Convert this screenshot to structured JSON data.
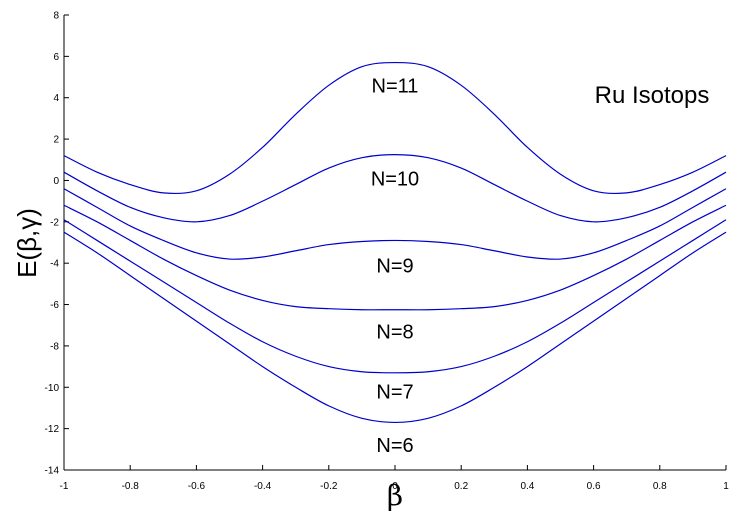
{
  "chart_data": {
    "type": "line",
    "xlabel": "β",
    "ylabel": "E(β,γ)",
    "annotation": "Ru Isotops",
    "xlim": [
      -1,
      1
    ],
    "ylim": [
      -14,
      8
    ],
    "xticks": [
      "-1",
      "-0.8",
      "-0.6",
      "-0.4",
      "-0.2",
      "0",
      "0.2",
      "0.4",
      "0.6",
      "0.8",
      "1"
    ],
    "yticks": [
      "-14",
      "-12",
      "-10",
      "-8",
      "-6",
      "-4",
      "-2",
      "0",
      "2",
      "4",
      "6",
      "8"
    ],
    "x": [
      -1,
      -0.9,
      -0.8,
      -0.7,
      -0.6,
      -0.5,
      -0.4,
      -0.3,
      -0.2,
      -0.1,
      0,
      0.1,
      0.2,
      0.3,
      0.4,
      0.5,
      0.6,
      0.7,
      0.8,
      0.9,
      1
    ],
    "series": [
      {
        "label": "N=11",
        "label_x": 0,
        "label_y": 4.6,
        "color": "#0000cc",
        "values": [
          1.2,
          0.4,
          -0.2,
          -0.6,
          -0.5,
          0.3,
          1.6,
          3.2,
          4.6,
          5.5,
          5.7,
          5.5,
          4.6,
          3.2,
          1.6,
          0.3,
          -0.5,
          -0.6,
          -0.2,
          0.4,
          1.2
        ]
      },
      {
        "label": "N=10",
        "label_x": 0,
        "label_y": 0.1,
        "color": "#0000cc",
        "values": [
          0.4,
          -0.5,
          -1.3,
          -1.8,
          -2.0,
          -1.7,
          -1.0,
          -0.2,
          0.6,
          1.1,
          1.25,
          1.1,
          0.6,
          -0.2,
          -1.0,
          -1.7,
          -2.0,
          -1.8,
          -1.3,
          -0.5,
          0.4
        ]
      },
      {
        "label": "N=9",
        "label_x": 0,
        "label_y": -4.1,
        "color": "#0000cc",
        "values": [
          -0.4,
          -1.3,
          -2.2,
          -2.9,
          -3.5,
          -3.8,
          -3.7,
          -3.4,
          -3.1,
          -2.95,
          -2.9,
          -2.95,
          -3.1,
          -3.4,
          -3.7,
          -3.8,
          -3.5,
          -2.9,
          -2.2,
          -1.3,
          -0.4
        ]
      },
      {
        "label": "N=8",
        "label_x": 0,
        "label_y": -7.3,
        "color": "#0000cc",
        "values": [
          -1.2,
          -2.0,
          -2.9,
          -3.8,
          -4.6,
          -5.3,
          -5.8,
          -6.1,
          -6.2,
          -6.25,
          -6.25,
          -6.25,
          -6.2,
          -6.1,
          -5.8,
          -5.3,
          -4.6,
          -3.8,
          -2.9,
          -2.0,
          -1.2
        ]
      },
      {
        "label": "N=7",
        "label_x": 0,
        "label_y": -10.2,
        "color": "#0000cc",
        "values": [
          -1.9,
          -2.9,
          -3.9,
          -4.9,
          -5.9,
          -6.9,
          -7.8,
          -8.5,
          -9.0,
          -9.25,
          -9.3,
          -9.25,
          -9.0,
          -8.5,
          -7.8,
          -6.9,
          -5.9,
          -4.9,
          -3.9,
          -2.9,
          -1.9
        ]
      },
      {
        "label": "N=6",
        "label_x": 0,
        "label_y": -12.8,
        "color": "#0000cc",
        "values": [
          -2.5,
          -3.5,
          -4.6,
          -5.7,
          -6.8,
          -7.9,
          -9.0,
          -10.0,
          -10.9,
          -11.5,
          -11.7,
          -11.5,
          -10.9,
          -10.0,
          -9.0,
          -7.9,
          -6.8,
          -5.7,
          -4.6,
          -3.5,
          -2.5
        ]
      }
    ],
    "grid": false,
    "line_color": "#0000cc"
  }
}
